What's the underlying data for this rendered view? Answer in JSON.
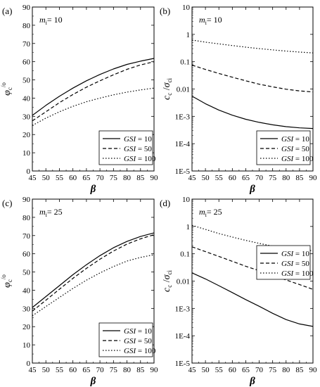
{
  "chart_data": [
    {
      "type": "line",
      "panel_label": "(a)",
      "annotation": {
        "sym": "m",
        "sub": "i",
        "val": "= 10"
      },
      "ylabel": {
        "sym": "φ",
        "sub": "c",
        "sup": "/o"
      },
      "xlabel": "β",
      "yscale": "linear",
      "xlim": [
        45,
        90
      ],
      "ylim": [
        0,
        90
      ],
      "xticks": [
        "45",
        "50",
        "55",
        "60",
        "65",
        "70",
        "75",
        "80",
        "85",
        "90"
      ],
      "yticks": [
        "0",
        "10",
        "20",
        "30",
        "40",
        "50",
        "60",
        "70",
        "80",
        "90"
      ],
      "legend_position": "bottom-right",
      "x": [
        45,
        50,
        55,
        60,
        65,
        70,
        75,
        80,
        85,
        90
      ],
      "series": [
        {
          "name": "GSI = 10",
          "dash": "solid",
          "values": [
            30.5,
            36,
            41,
            45.5,
            49.5,
            53,
            56,
            58.5,
            60.3,
            61.8
          ]
        },
        {
          "name": "GSI = 50",
          "dash": "dashed",
          "values": [
            27.5,
            32.5,
            37.5,
            42,
            46,
            49.5,
            52.8,
            55.8,
            58.2,
            60
          ]
        },
        {
          "name": "GSI = 100",
          "dash": "dotted",
          "values": [
            25,
            29,
            32.5,
            35.5,
            38,
            40,
            41.8,
            43.3,
            44.5,
            45.5
          ]
        }
      ]
    },
    {
      "type": "line",
      "panel_label": "(b)",
      "annotation": {
        "sym": "m",
        "sub": "i",
        "val": "= 10"
      },
      "ylabel": {
        "sym1": "c",
        "sub1": "c",
        "mid": " /",
        "sym2": "σ",
        "sub2": "ci"
      },
      "xlabel": "β",
      "yscale": "log",
      "xlim": [
        45,
        90
      ],
      "ylim": [
        1e-05,
        10
      ],
      "xticks": [
        "45",
        "50",
        "55",
        "60",
        "65",
        "70",
        "75",
        "80",
        "85",
        "90"
      ],
      "ytick_values": [
        1e-05,
        0.0001,
        0.001,
        0.01,
        0.1,
        1,
        10
      ],
      "yticks": [
        "1E-5",
        "1E-4",
        "1E-3",
        "0.01",
        "0.1",
        "1",
        "10"
      ],
      "legend_position": "bottom-right",
      "x": [
        45,
        50,
        55,
        60,
        65,
        70,
        75,
        80,
        85,
        90
      ],
      "series": [
        {
          "name": "GSI = 10",
          "dash": "solid",
          "values": [
            0.0055,
            0.0029,
            0.0017,
            0.0011,
            0.00078,
            0.0006,
            0.00049,
            0.00042,
            0.00038,
            0.00036
          ]
        },
        {
          "name": "GSI = 50",
          "dash": "dashed",
          "values": [
            0.075,
            0.052,
            0.037,
            0.027,
            0.02,
            0.015,
            0.012,
            0.0098,
            0.0085,
            0.0078
          ]
        },
        {
          "name": "GSI = 100",
          "dash": "dotted",
          "values": [
            0.62,
            0.52,
            0.45,
            0.39,
            0.34,
            0.3,
            0.27,
            0.245,
            0.225,
            0.21
          ]
        }
      ]
    },
    {
      "type": "line",
      "panel_label": "(c)",
      "annotation": {
        "sym": "m",
        "sub": "i",
        "val": "= 25"
      },
      "ylabel": {
        "sym": "φ",
        "sub": "c",
        "sup": "/o"
      },
      "xlabel": "β",
      "yscale": "linear",
      "xlim": [
        45,
        90
      ],
      "ylim": [
        0,
        90
      ],
      "xticks": [
        "45",
        "50",
        "55",
        "60",
        "65",
        "70",
        "75",
        "80",
        "85",
        "90"
      ],
      "yticks": [
        "0",
        "10",
        "20",
        "30",
        "40",
        "50",
        "60",
        "70",
        "80",
        "90"
      ],
      "legend_position": "bottom-right",
      "x": [
        45,
        50,
        55,
        60,
        65,
        70,
        75,
        80,
        85,
        90
      ],
      "series": [
        {
          "name": "GSI = 10",
          "dash": "solid",
          "values": [
            30.5,
            36.5,
            42.5,
            48.5,
            54,
            59,
            63.3,
            66.8,
            69.5,
            71.5
          ]
        },
        {
          "name": "GSI = 50",
          "dash": "dashed",
          "values": [
            28.5,
            34.5,
            40.5,
            46.5,
            52,
            57,
            61.5,
            65.3,
            68.2,
            70.5
          ]
        },
        {
          "name": "GSI = 100",
          "dash": "dotted",
          "values": [
            26,
            31,
            36,
            41,
            45.5,
            49.5,
            53,
            56,
            58,
            59.5
          ]
        }
      ]
    },
    {
      "type": "line",
      "panel_label": "(d)",
      "annotation": {
        "sym": "m",
        "sub": "i",
        "val": "= 25"
      },
      "ylabel": {
        "sym1": "c",
        "sub1": "c",
        "mid": " /",
        "sym2": "σ",
        "sub2": "ci"
      },
      "xlabel": "β",
      "yscale": "log",
      "xlim": [
        45,
        90
      ],
      "ylim": [
        1e-05,
        10
      ],
      "xticks": [
        "45",
        "50",
        "55",
        "60",
        "65",
        "70",
        "75",
        "80",
        "85",
        "90"
      ],
      "ytick_values": [
        1e-05,
        0.0001,
        0.001,
        0.01,
        0.1,
        1,
        10
      ],
      "yticks": [
        "1E-5",
        "1E-4",
        "1E-3",
        "0.01",
        "0.1",
        "1",
        "10"
      ],
      "legend_position": "top-right",
      "x": [
        45,
        50,
        55,
        60,
        65,
        70,
        75,
        80,
        85,
        90
      ],
      "series": [
        {
          "name": "GSI = 10",
          "dash": "solid",
          "values": [
            0.02,
            0.012,
            0.0068,
            0.0038,
            0.0021,
            0.0012,
            0.00066,
            0.00039,
            0.00027,
            0.00022
          ]
        },
        {
          "name": "GSI = 50",
          "dash": "dashed",
          "values": [
            0.18,
            0.12,
            0.08,
            0.053,
            0.035,
            0.024,
            0.016,
            0.011,
            0.0075,
            0.005
          ]
        },
        {
          "name": "GSI = 100",
          "dash": "dotted",
          "values": [
            1.1,
            0.78,
            0.55,
            0.41,
            0.31,
            0.24,
            0.19,
            0.16,
            0.14,
            0.13
          ]
        }
      ]
    }
  ]
}
